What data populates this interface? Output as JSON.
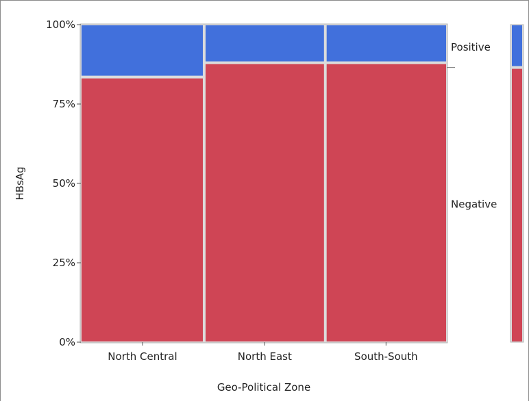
{
  "chart_data": {
    "type": "mosaic",
    "title": "",
    "xlabel": "Geo-Political Zone",
    "ylabel": "HBsAg",
    "ylim": [
      0,
      100
    ],
    "y_ticks": [
      "0%",
      "25%",
      "50%",
      "75%",
      "100%"
    ],
    "y_tick_values": [
      0,
      25,
      50,
      75,
      100
    ],
    "categories": [
      "North Central",
      "North East",
      "South-South"
    ],
    "series": [
      {
        "name": "Negative",
        "color": "#cf4555",
        "values": [
          83.5,
          88,
          88
        ]
      },
      {
        "name": "Positive",
        "color": "#4170dc",
        "values": [
          16.5,
          12,
          12
        ]
      }
    ],
    "category_share": [
      0.337,
      0.331,
      0.332
    ],
    "overall": {
      "Negative": 86.5,
      "Positive": 13.5
    },
    "legend_placement": "right",
    "grid": false
  }
}
